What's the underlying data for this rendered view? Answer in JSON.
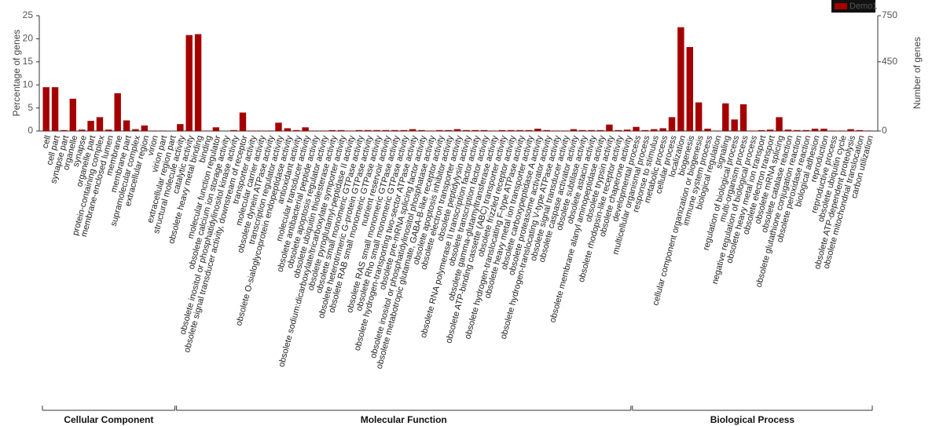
{
  "chart_data": {
    "type": "bar",
    "ylabel": "Percentage of genes",
    "y2label": "Number of genes",
    "ylim": [
      0,
      25
    ],
    "yticks": [
      0,
      5,
      10,
      15,
      20,
      25
    ],
    "y2lim": [
      0,
      750
    ],
    "y2ticks": [
      0,
      450,
      750
    ],
    "legend": "top-right",
    "groups": [
      {
        "name": "Cellular Component",
        "categories": [
          "cell",
          "cell part",
          "synapse part",
          "organelle",
          "synapse",
          "organelle part",
          "protein-containing complex",
          "membrane-enclosed lumen",
          "membrane",
          "membrane part",
          "supramolecular complex",
          "extracellular region",
          "virion",
          "virion part",
          "extracellular region part"
        ]
      },
      {
        "name": "Molecular Function",
        "categories": [
          "structural molecule activity",
          "catalytic activity",
          "obsolete heavy metal binding",
          "binding",
          "molecular function regulator",
          "obsolete calcium ion storage activity",
          "obsolete inositol or phosphatidylinositol kinase activity",
          "obsolete signal transducer activity, downstream of receptor",
          "transporter activity",
          "molecular carrier activity",
          "obsolete dynein ATPase activity",
          "transcription regulator activity",
          "obsolete O-sialoglycoprotein endopeptidase activity",
          "antioxidant activity",
          "molecular transducer activity",
          "obsolete antibacterial peptide activity",
          "obsolete apoptosis regulator activity",
          "obsolete ubiquitin thiolesterase activity",
          "obsolete sodium:dicarboxylate/tricarboxylate symporter activity",
          "obsolete pyroglutamyl-peptidase II activity",
          "obsolete small monomeric GTPase activity",
          "obsolete heterotrimeric G-protein GTPase activity",
          "obsolete RAB small monomeric GTPase activity",
          "nutrient reservoir activity",
          "obsolete RAS small monomeric GTPase activity",
          "obsolete Rho small monomeric GTPase activity",
          "obsolete hydrogen-transporting two-sector ATPase activity",
          "obsolete pre-mRNA splicing factor activity",
          "obsolete inositol or phosphatidylinositol phosphatase activity",
          "obsolete metabotropic glutamate, GABA-B-like receptor activity",
          "obsolete apoptosis inhibitor activity",
          "obsolete electron transporter activity",
          "obsolete peptidylysin activity",
          "obsolete RNA polymerase II transcription factor activity",
          "obsolete transcription factor activity",
          "obsolete gamma-glutamyltransferase activity",
          "obsolete ATP-binding cassette (ABC) transporter activity",
          "obsolete frizzled receptor activity",
          "obsolete hydrogen-translocating F-type ATPase activity",
          "obsolete heavy metal ion transporter activity",
          "obsolete carboxypeptidase A activity",
          "obsolete proteasome activator activity",
          "obsolete hydrogen-translocating V-type ATPase activity",
          "obsolete signal transducer activity",
          "obsolete caspase activator activity",
          "obsolete subtilase activity",
          "obsolete astacin activity",
          "obsolete membrane alanyl aminopeptidase activity",
          "obsolete trypsin activity",
          "obsolete rhodopsin-like receptor activity",
          "obsolete chaperone activity"
        ]
      },
      {
        "name": "Biological Process",
        "categories": [
          "developmental process",
          "multicellular organismal process",
          "response to stimulus",
          "metabolic process",
          "cellular process",
          "localization",
          "biogenesis",
          "cellular component organization or biogenesis",
          "immune system process",
          "biological regulation",
          "signaling",
          "regulation of biological process",
          "multi-organism process",
          "negative regulation of biological process",
          "obsolete heavy metal ion transport",
          "obsolete electron transport",
          "obsolete mRNA splicing",
          "obsolete catalase reaction",
          "obsolete glutathione conjugation reaction",
          "obsolete peroxidase reaction",
          "biological adhesion",
          "reproduction",
          "reproductive process",
          "obsolete ubiquitin cycle",
          "obsolete ATP-dependent proteolysis",
          "obsolete mitochondrial translocation",
          "carbon utilization"
        ]
      }
    ],
    "series": [
      {
        "name": "Demo1",
        "color": "#a50000",
        "values": [
          9.5,
          9.5,
          0.2,
          7,
          0.3,
          2.2,
          3,
          0.3,
          8.2,
          2.3,
          0.4,
          1.2,
          0.1,
          0.1,
          0,
          1.5,
          20.8,
          21,
          0.1,
          0.8,
          0,
          0.2,
          4,
          0.1,
          0.1,
          0.1,
          1.8,
          0.6,
          0.2,
          0.8,
          0.1,
          0.1,
          0.2,
          0.2,
          0.1,
          0.2,
          0.2,
          0.2,
          0.2,
          0.2,
          0.2,
          0.4,
          0.2,
          0.1,
          0.2,
          0.2,
          0.4,
          0.2,
          0.2,
          0.2,
          0.1,
          0.2,
          0.2,
          0.2,
          0.2,
          0.5,
          0.2,
          0.1,
          0.1,
          0.4,
          0.2,
          0.2,
          0.2,
          1.4,
          0.2,
          0.3,
          0.9,
          0.2,
          0.4,
          0.6,
          3,
          22.5,
          18.2,
          6.2,
          0.5,
          0.1,
          6,
          2.5,
          5.8,
          0.1,
          0.2,
          0.3,
          3,
          0.3,
          0.2,
          0.2,
          0.5,
          0.5,
          0.1,
          0.1,
          0.4,
          0.2,
          0.1
        ]
      }
    ]
  }
}
